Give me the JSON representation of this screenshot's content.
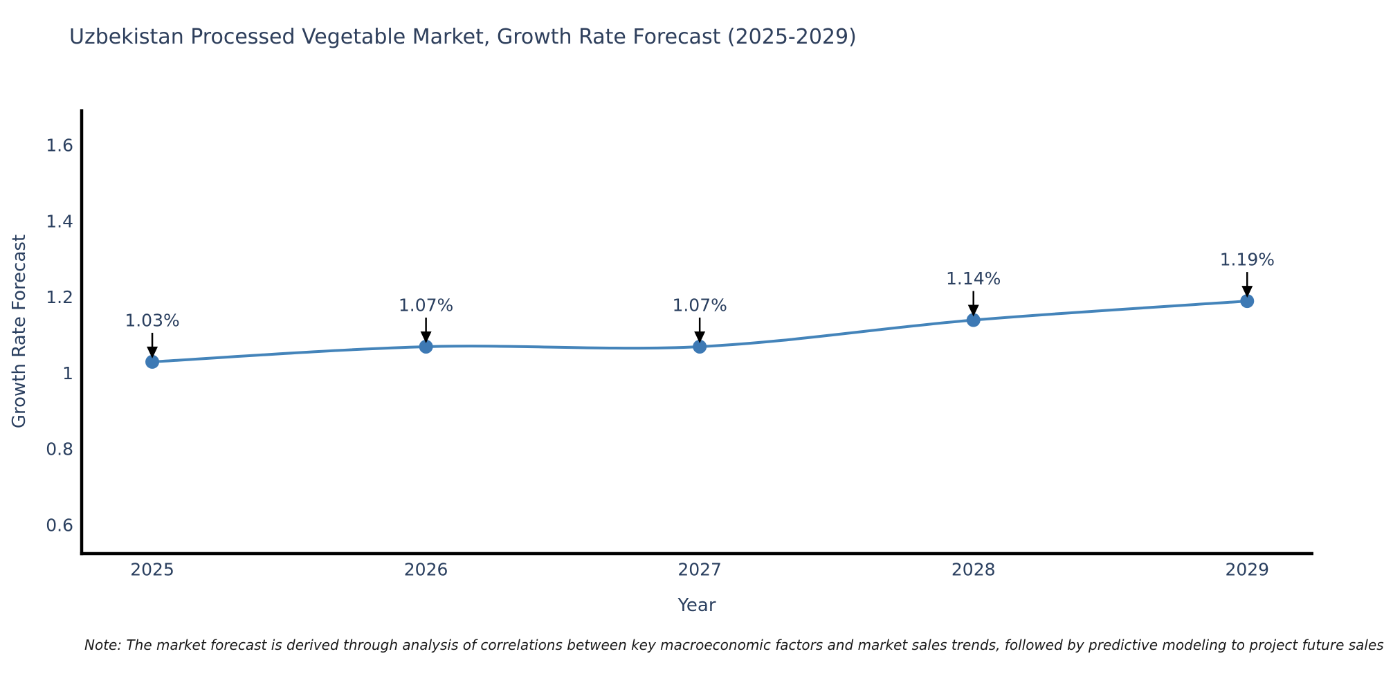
{
  "chart_data": {
    "type": "line",
    "title": "Uzbekistan Processed Vegetable Market, Growth Rate Forecast (2025-2029)",
    "xlabel": "Year",
    "ylabel": "Growth Rate Forecast",
    "note": "Note: The market forecast is derived through analysis of correlations between key macroeconomic factors and market sales trends, followed by predictive modeling to project future sales",
    "x": [
      2025,
      2026,
      2027,
      2028,
      2029
    ],
    "x_tick_labels": [
      "2025",
      "2026",
      "2027",
      "2028",
      "2029"
    ],
    "series": [
      {
        "name": "Growth Rate Forecast",
        "values": [
          1.03,
          1.07,
          1.07,
          1.14,
          1.19
        ]
      }
    ],
    "point_labels": [
      "1.03%",
      "1.07%",
      "1.07%",
      "1.14%",
      "1.19%"
    ],
    "y_ticks": [
      0.6,
      0.8,
      1,
      1.2,
      1.4,
      1.6
    ],
    "y_tick_labels": [
      "0.6",
      "0.8",
      "1",
      "1.2",
      "1.4",
      "1.6"
    ],
    "xlim": [
      2024.742,
      2029.242
    ],
    "ylim": [
      0.525,
      1.695
    ],
    "grid": false,
    "legend_position": "none",
    "curve": "spline",
    "colors": {
      "line": "#4484ba",
      "marker": "#3d79b4",
      "axis": "#000000",
      "text": "#2a3f5f",
      "annotation_arrow": "#000000"
    }
  }
}
